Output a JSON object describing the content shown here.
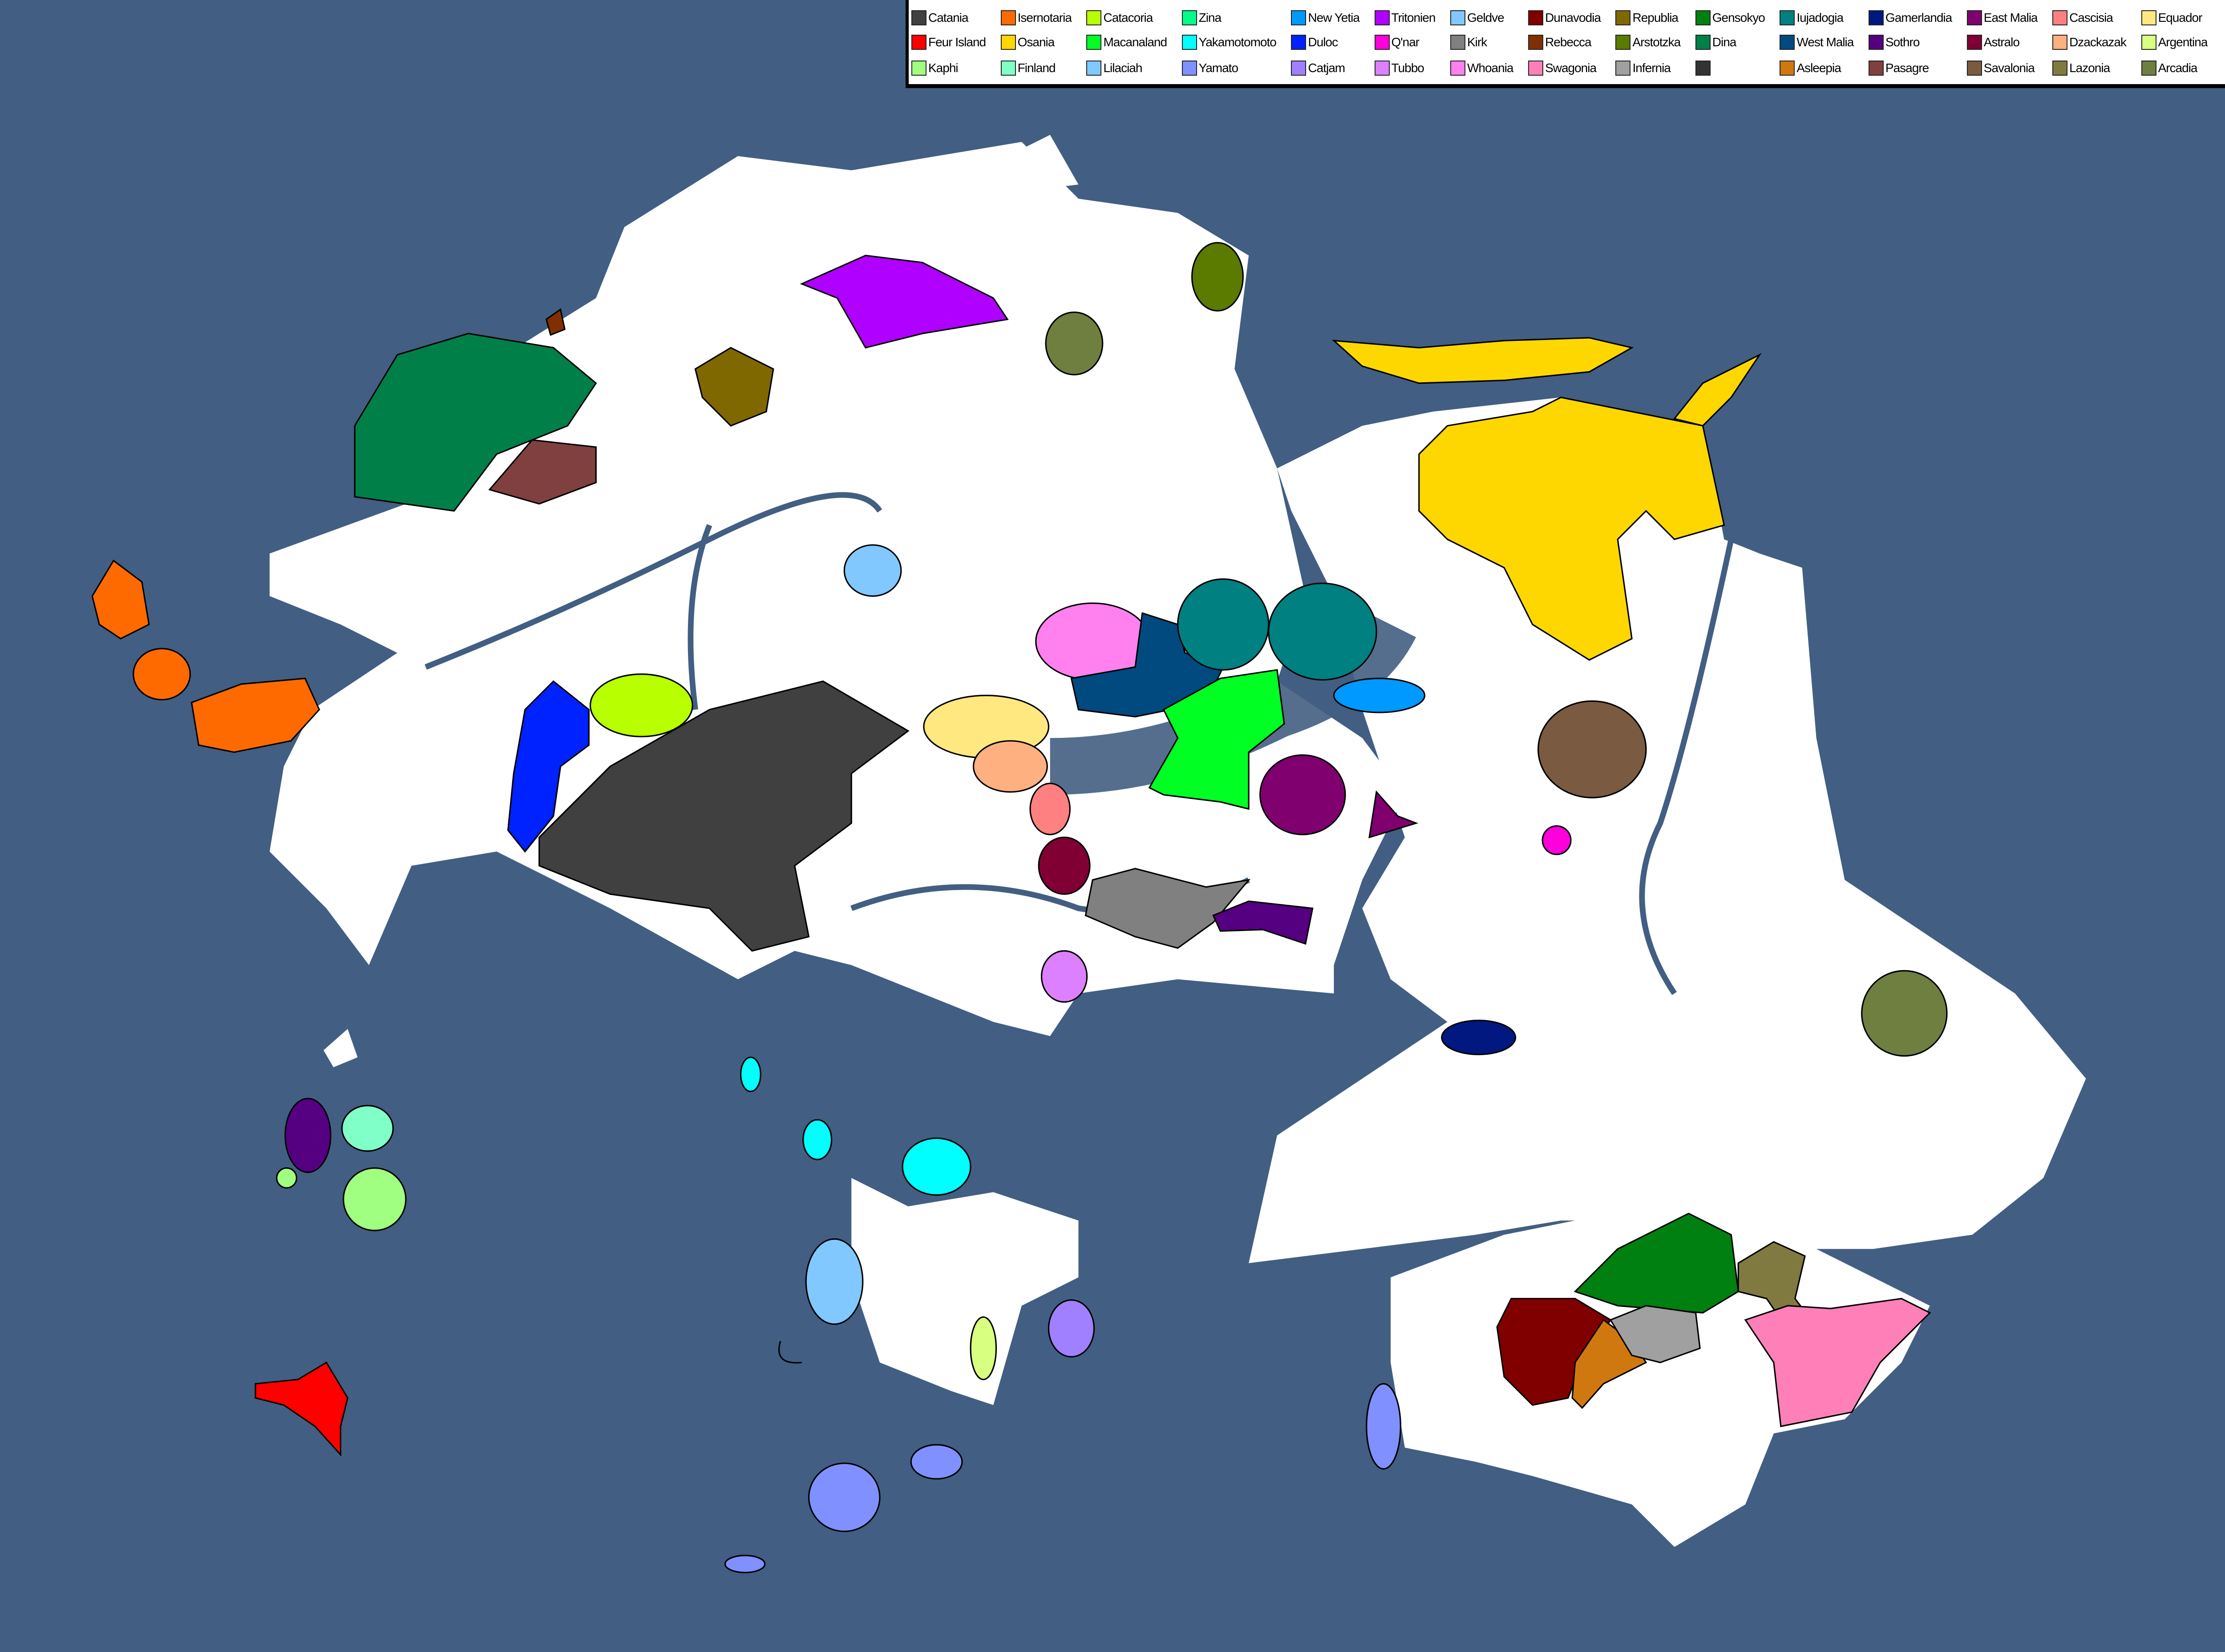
{
  "map": {
    "ocean_color": "#425e82",
    "land_color": "#ffffff"
  },
  "legend": {
    "columns": [
      [
        {
          "label": "Catania",
          "color": "#404040"
        },
        {
          "label": "Feur Island",
          "color": "#ff0000"
        },
        {
          "label": "Kaphi",
          "color": "#a0ff80"
        }
      ],
      [
        {
          "label": "Isernotaria",
          "color": "#ff6a00"
        },
        {
          "label": "Osania",
          "color": "#ffd700"
        },
        {
          "label": "Finland",
          "color": "#80ffc8"
        }
      ],
      [
        {
          "label": "Catacoria",
          "color": "#b8ff00"
        },
        {
          "label": "Macanaland",
          "color": "#00ff22"
        },
        {
          "label": "Lilaciah",
          "color": "#80c8ff"
        }
      ],
      [
        {
          "label": "Zina",
          "color": "#00ff88"
        },
        {
          "label": "Yakamotomoto",
          "color": "#00ffff"
        },
        {
          "label": "Yamato",
          "color": "#8090ff"
        }
      ],
      [
        {
          "label": "New Yetia",
          "color": "#0099ff"
        },
        {
          "label": "Duloc",
          "color": "#0022ff"
        },
        {
          "label": "Catjam",
          "color": "#a080ff"
        }
      ],
      [
        {
          "label": "Tritonien",
          "color": "#b000ff"
        },
        {
          "label": "Q'nar",
          "color": "#ff00dd"
        },
        {
          "label": "Tubbo",
          "color": "#dd80ff"
        }
      ],
      [
        {
          "label": "Geldve",
          "color": "#80c8ff"
        },
        {
          "label": "Kirk",
          "color": "#808080"
        },
        {
          "label": "Whoania",
          "color": "#ff80ee"
        }
      ],
      [
        {
          "label": "Dunavodia",
          "color": "#800000"
        },
        {
          "label": "Rebecca",
          "color": "#803000"
        },
        {
          "label": "Swagonia",
          "color": "#ff80b8"
        }
      ],
      [
        {
          "label": "Republia",
          "color": "#806800"
        },
        {
          "label": "Arstotzka",
          "color": "#5a7a00"
        },
        {
          "label": "Infernia",
          "color": "#a0a0a0"
        }
      ],
      [
        {
          "label": "Gensokyo",
          "color": "#008010"
        },
        {
          "label": "Dina",
          "color": "#008048"
        },
        {
          "label": "",
          "color": "#333333"
        }
      ],
      [
        {
          "label": "Iujadogia",
          "color": "#008080"
        },
        {
          "label": "West Malia",
          "color": "#004a80"
        },
        {
          "label": "Asleepia",
          "color": "#d07810"
        }
      ],
      [
        {
          "label": "Gamerlandia",
          "color": "#001880"
        },
        {
          "label": "Sothro",
          "color": "#550080"
        },
        {
          "label": "Pasagre",
          "color": "#804040"
        }
      ],
      [
        {
          "label": "East Malia",
          "color": "#800070"
        },
        {
          "label": "Astralo",
          "color": "#800033"
        },
        {
          "label": "Savalonia",
          "color": "#7a5a40"
        }
      ],
      [
        {
          "label": "Cascisia",
          "color": "#ff8080"
        },
        {
          "label": "Dzackazak",
          "color": "#ffb080"
        },
        {
          "label": "Lazonia",
          "color": "#807a40"
        }
      ],
      [
        {
          "label": "Equador",
          "color": "#ffe880"
        },
        {
          "label": "Argentina",
          "color": "#d8ff80"
        },
        {
          "label": "Arcadia",
          "color": "#6e7f40"
        }
      ]
    ]
  }
}
